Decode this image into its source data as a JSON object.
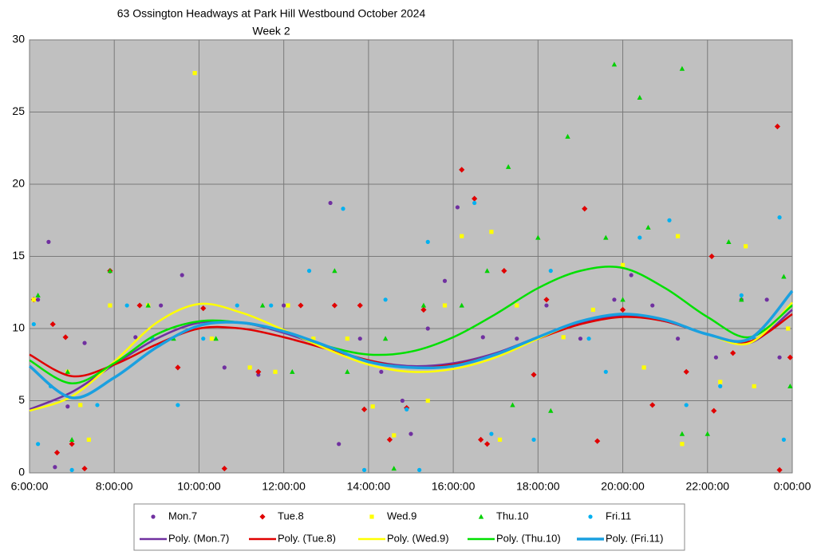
{
  "chart_data": {
    "type": "scatter",
    "title": "63 Ossington Headways at Park Hill Westbound October 2024",
    "subtitle": "Week 2",
    "xlim": [
      6,
      24
    ],
    "xticks": [
      {
        "value": 6,
        "label": "6:00:00"
      },
      {
        "value": 8,
        "label": "8:00:00"
      },
      {
        "value": 10,
        "label": "10:00:00"
      },
      {
        "value": 12,
        "label": "12:00:00"
      },
      {
        "value": 14,
        "label": "14:00:00"
      },
      {
        "value": 16,
        "label": "16:00:00"
      },
      {
        "value": 18,
        "label": "18:00:00"
      },
      {
        "value": 20,
        "label": "20:00:00"
      },
      {
        "value": 22,
        "label": "22:00:00"
      },
      {
        "value": 24,
        "label": "0:00:00"
      }
    ],
    "ylim": [
      0,
      30
    ],
    "yticks": [
      0,
      5,
      10,
      15,
      20,
      25,
      30
    ],
    "grid": true,
    "background": "#c0c0c0",
    "legend": "bottom",
    "series": [
      {
        "name": "Mon.7",
        "color": "#7030a0",
        "marker": "circle",
        "x": [
          6.2,
          6.45,
          6.6,
          6.9,
          7.3,
          7.9,
          8.5,
          9.1,
          9.6,
          10.6,
          11.4,
          12.0,
          13.1,
          13.3,
          13.8,
          14.3,
          14.8,
          15.0,
          15.4,
          15.8,
          16.1,
          16.7,
          17.5,
          18.2,
          19.0,
          19.8,
          20.2,
          20.7,
          21.3,
          22.2,
          22.8,
          23.4,
          23.7
        ],
        "values": [
          12,
          16,
          0.4,
          4.6,
          9,
          14,
          9.4,
          11.6,
          13.7,
          7.3,
          6.8,
          11.6,
          18.7,
          2,
          9.3,
          7,
          5,
          2.7,
          10,
          13.3,
          18.4,
          9.4,
          9.3,
          11.6,
          9.3,
          12,
          13.7,
          11.6,
          9.3,
          8,
          12,
          12,
          8
        ]
      },
      {
        "name": "Tue.8",
        "color": "#e00000",
        "marker": "diamond",
        "x": [
          6.1,
          6.55,
          6.65,
          6.85,
          7.0,
          7.3,
          7.9,
          8.6,
          9.5,
          10.1,
          10.6,
          11.4,
          12.4,
          13.2,
          13.8,
          13.9,
          14.5,
          14.9,
          15.3,
          16.2,
          16.5,
          16.65,
          16.8,
          17.2,
          17.9,
          18.2,
          19.1,
          19.4,
          20.0,
          20.7,
          21.5,
          22.1,
          22.15,
          22.6,
          23.7,
          23.65,
          23.95
        ],
        "values": [
          12,
          10.3,
          1.4,
          9.4,
          2,
          0.3,
          14,
          11.6,
          7.3,
          11.4,
          0.3,
          7,
          11.6,
          11.6,
          11.6,
          4.4,
          2.3,
          4.5,
          11.3,
          21,
          19,
          2.3,
          2,
          14,
          6.8,
          12,
          18.3,
          2.2,
          11.3,
          4.7,
          7,
          15,
          4.3,
          8.3,
          0.2,
          24,
          8
        ]
      },
      {
        "name": "Wed.9",
        "color": "#ffff00",
        "marker": "square",
        "x": [
          6.1,
          6.9,
          7.2,
          7.4,
          7.9,
          8.8,
          9.9,
          10.3,
          11.2,
          11.8,
          12.1,
          12.7,
          13.5,
          14.1,
          14.6,
          15.4,
          15.8,
          16.2,
          16.9,
          17.1,
          17.5,
          18.6,
          19.3,
          20.0,
          20.5,
          21.3,
          21.4,
          22.3,
          22.9,
          23.1,
          23.9
        ],
        "values": [
          12,
          7,
          4.7,
          2.3,
          11.6,
          11.6,
          27.7,
          9.3,
          7.3,
          7,
          11.6,
          9.3,
          9.3,
          4.6,
          2.6,
          5,
          11.6,
          16.4,
          16.7,
          2.3,
          11.6,
          9.4,
          11.3,
          14.4,
          7.3,
          16.4,
          2,
          6.3,
          15.7,
          6,
          10
        ]
      },
      {
        "name": "Thu.10",
        "color": "#00d000",
        "marker": "triangle",
        "x": [
          6.2,
          6.9,
          7.0,
          7.9,
          8.8,
          9.4,
          10.4,
          11.5,
          12.2,
          13.2,
          13.5,
          14.4,
          14.6,
          15.3,
          16.2,
          16.8,
          17.3,
          17.4,
          18.0,
          18.3,
          18.7,
          19.6,
          20.0,
          20.4,
          20.6,
          21.4,
          21.4,
          19.8,
          22.0,
          22.5,
          22.8,
          23.8,
          23.95
        ],
        "values": [
          12.3,
          7,
          2.3,
          14,
          11.6,
          9.3,
          9.3,
          11.6,
          7,
          14,
          7,
          9.3,
          0.3,
          11.6,
          11.6,
          14,
          21.2,
          4.7,
          16.3,
          4.3,
          23.3,
          16.3,
          12,
          26,
          17,
          28,
          2.7,
          28.3,
          2.7,
          16,
          12,
          13.6,
          6
        ]
      },
      {
        "name": "Fri.11",
        "color": "#00b0f0",
        "marker": "circle",
        "x": [
          6.1,
          6.2,
          6.5,
          7.0,
          7.6,
          8.3,
          8.9,
          9.5,
          10.1,
          10.9,
          11.7,
          12.6,
          13.4,
          13.9,
          14.4,
          14.9,
          15.2,
          15.4,
          16.5,
          16.9,
          17.9,
          18.3,
          19.2,
          19.6,
          20.4,
          21.1,
          21.5,
          22.3,
          22.8,
          23.1,
          23.7,
          23.8
        ],
        "values": [
          10.3,
          2,
          6,
          0.2,
          4.7,
          11.6,
          9.3,
          4.7,
          9.3,
          11.6,
          11.6,
          14,
          18.3,
          0.2,
          12,
          4.4,
          0.2,
          16,
          18.7,
          2.7,
          2.3,
          14,
          9.3,
          7,
          16.3,
          17.5,
          4.7,
          6,
          12.3,
          9.3,
          17.7,
          2.3
        ]
      }
    ],
    "trendlines": [
      {
        "name": "Poly. (Mon.7)",
        "color": "#7030a0",
        "width": 2.5,
        "x": [
          6,
          7,
          8,
          9,
          10,
          11,
          12,
          13,
          14,
          15,
          16,
          17,
          18,
          19,
          20,
          21,
          22,
          23,
          24
        ],
        "values": [
          4.4,
          5.6,
          7.5,
          9.3,
          10.4,
          10.4,
          9.7,
          8.7,
          7.8,
          7.4,
          7.6,
          8.3,
          9.4,
          10.4,
          10.9,
          10.5,
          9.6,
          9.0,
          11.3
        ]
      },
      {
        "name": "Poly. (Tue.8)",
        "color": "#e00000",
        "width": 2.5,
        "x": [
          6,
          7,
          8,
          9,
          10,
          11,
          12,
          13,
          14,
          15,
          16,
          17,
          18,
          19,
          20,
          21,
          22,
          23,
          24
        ],
        "values": [
          8.2,
          6.7,
          7.5,
          8.9,
          10.0,
          10.0,
          9.4,
          8.6,
          7.8,
          7.3,
          7.5,
          8.2,
          9.3,
          10.3,
          10.8,
          10.5,
          9.6,
          9.1,
          11.0
        ]
      },
      {
        "name": "Poly. (Wed.9)",
        "color": "#ffff00",
        "width": 2.5,
        "x": [
          6,
          7,
          8,
          9,
          10,
          11,
          12,
          13,
          14,
          15,
          16,
          17,
          18,
          19,
          20,
          21,
          22,
          23,
          24
        ],
        "values": [
          4.3,
          5.3,
          7.7,
          10.4,
          11.7,
          11.1,
          9.9,
          8.6,
          7.5,
          7.0,
          7.2,
          8.0,
          9.3,
          10.5,
          11.0,
          10.6,
          9.6,
          9.0,
          11.8
        ]
      },
      {
        "name": "Poly. (Thu.10)",
        "color": "#00e000",
        "width": 2.5,
        "x": [
          6,
          7,
          8,
          9,
          10,
          11,
          12,
          13,
          14,
          15,
          16,
          17,
          18,
          19,
          20,
          21,
          22,
          23,
          24
        ],
        "values": [
          7.8,
          6.2,
          7.6,
          9.6,
          10.5,
          10.4,
          9.8,
          8.8,
          8.2,
          8.4,
          9.4,
          11.0,
          12.8,
          14.0,
          14.2,
          12.8,
          10.8,
          9.4,
          11.6
        ]
      },
      {
        "name": "Poly. (Fri.11)",
        "color": "#1aa0e0",
        "width": 3.5,
        "x": [
          6,
          7,
          8,
          9,
          10,
          11,
          12,
          13,
          14,
          15,
          16,
          17,
          18,
          19,
          20,
          21,
          22,
          23,
          24
        ],
        "values": [
          7.4,
          5.2,
          6.6,
          8.7,
          10.2,
          10.4,
          9.8,
          8.8,
          7.7,
          7.3,
          7.4,
          8.2,
          9.4,
          10.5,
          11.0,
          10.6,
          9.6,
          9.3,
          12.6
        ]
      }
    ]
  }
}
